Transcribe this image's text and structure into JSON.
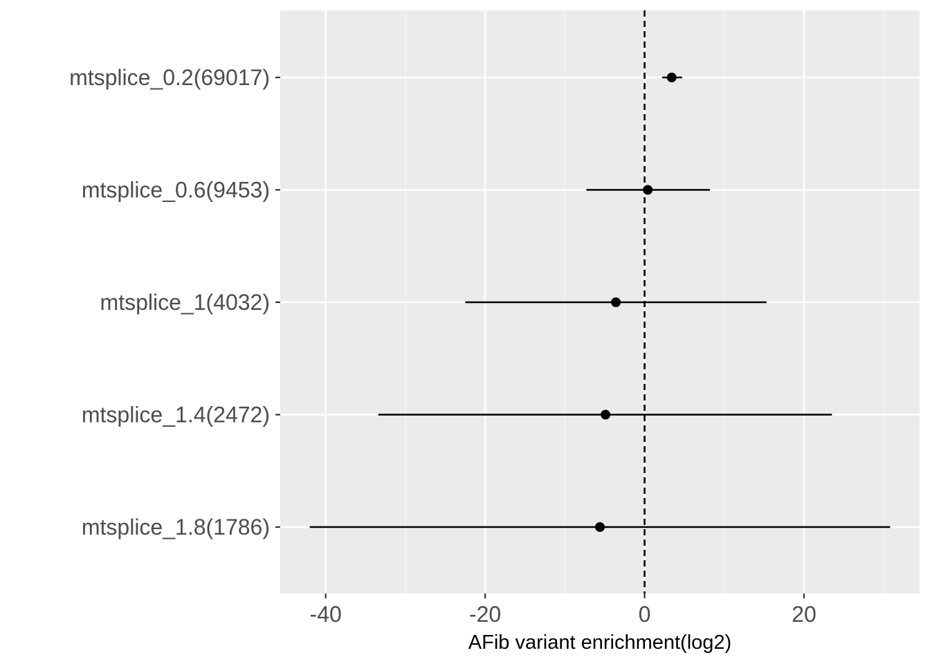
{
  "chart_data": {
    "type": "scatter",
    "title": "",
    "xlabel": "AFib variant enrichment(log2)",
    "ylabel": "",
    "categories": [
      "mtsplice_0.2(69017)",
      "mtsplice_0.6(9453)",
      "mtsplice_1(4032)",
      "mtsplice_1.4(2472)",
      "mtsplice_1.8(1786)"
    ],
    "series": [
      {
        "points": [
          {
            "category": "mtsplice_0.2(69017)",
            "estimate": 3.4,
            "lower": 2.2,
            "upper": 4.7
          },
          {
            "category": "mtsplice_0.6(9453)",
            "estimate": 0.4,
            "lower": -7.3,
            "upper": 8.2
          },
          {
            "category": "mtsplice_1(4032)",
            "estimate": -3.6,
            "lower": -22.5,
            "upper": 15.3
          },
          {
            "category": "mtsplice_1.4(2472)",
            "estimate": -4.9,
            "lower": -33.4,
            "upper": 23.5
          },
          {
            "category": "mtsplice_1.8(1786)",
            "estimate": -5.6,
            "lower": -42.0,
            "upper": 30.8
          }
        ]
      }
    ],
    "x_ticks": [
      -40,
      -20,
      0,
      20
    ],
    "x_tick_labels": [
      "-40",
      "-20",
      "0",
      "20"
    ],
    "xlim": [
      -45.7,
      34.5
    ],
    "reference_line": 0,
    "grid": true,
    "legend": "none",
    "colors": {
      "panel_background": "#ebebeb",
      "grid_major": "#ffffff",
      "grid_minor": "#f5f5f5",
      "point": "#000000",
      "error_bar": "#000000",
      "tick_label": "#4d4d4d"
    }
  }
}
